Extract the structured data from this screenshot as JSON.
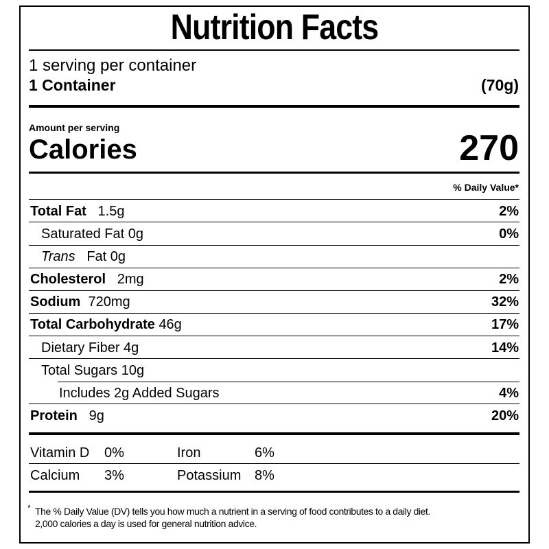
{
  "title": "Nutrition Facts",
  "servings": {
    "per_container": "1 serving per container",
    "size_label": "1 Container",
    "size_amount": "(70g)"
  },
  "calories": {
    "label": "Amount per serving",
    "name": "Calories",
    "value": 270
  },
  "dv_header": "% Daily Value*",
  "nutrients": [
    {
      "name": "Total Fat",
      "amount": "1.5g",
      "dv": "2%"
    },
    {
      "name": "Saturated Fat",
      "amount": "0g",
      "dv": "0%"
    },
    {
      "name": "Trans",
      "amount": "Fat 0g"
    },
    {
      "name": "Cholesterol",
      "amount": "2mg",
      "dv": "2%"
    },
    {
      "name": "Sodium",
      "amount": "720mg",
      "dv": "32%"
    },
    {
      "name": "Total Carbohydrate",
      "amount": "46g",
      "dv": "17%"
    },
    {
      "name": "Dietary Fiber",
      "amount": "4g",
      "dv": "14%"
    },
    {
      "name": "Total Sugars",
      "amount": "10g"
    },
    {
      "name": "Includes 2g Added Sugars",
      "dv": "4%"
    },
    {
      "name": "Protein",
      "amount": "9g",
      "dv": "20%"
    }
  ],
  "vitamins": [
    {
      "name": "Vitamin D",
      "dv": "0%"
    },
    {
      "name": "Iron",
      "dv": "6%"
    },
    {
      "name": "Calcium",
      "dv": "3%"
    },
    {
      "name": "Potassium",
      "dv": "8%"
    }
  ],
  "footnote": {
    "marker": "*",
    "lines": [
      "The % Daily Value (DV) tells you how much a nutrient in a serving of food contributes to a daily diet.",
      "2,000 calories a day is used for general nutrition advice."
    ]
  }
}
